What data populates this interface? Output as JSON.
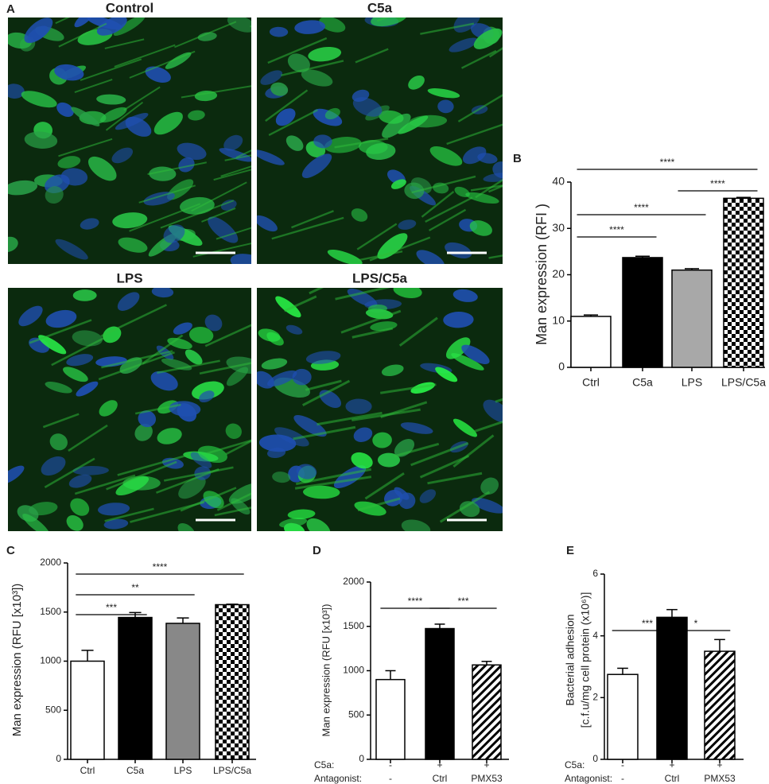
{
  "figure_a": {
    "panel_label": "A",
    "images": [
      {
        "label": "Control"
      },
      {
        "label": "C5a"
      },
      {
        "label": "LPS"
      },
      {
        "label": "LPS/C5a"
      }
    ]
  },
  "chart_data": [
    {
      "type": "bar",
      "panel_label": "B",
      "ylabel": "Man expression (RFI )",
      "categories": [
        "Ctrl",
        "C5a",
        "LPS",
        "LPS/C5a"
      ],
      "values": [
        11,
        23.7,
        21,
        36.5
      ],
      "errors": [
        0.3,
        0.3,
        0.3,
        0.2
      ],
      "fills": [
        "#ffffff",
        "#000000",
        "#a8a8a8",
        "checker"
      ],
      "ylim": [
        0,
        40
      ],
      "yticks": [
        0,
        10,
        20,
        30,
        40
      ],
      "significance": [
        {
          "from": 0,
          "to": 1,
          "label": "****"
        },
        {
          "from": 0,
          "to": 2,
          "label": "****"
        },
        {
          "from": 2,
          "to": 3,
          "label": "****"
        },
        {
          "from": 0,
          "to": 3,
          "label": "****"
        }
      ]
    },
    {
      "type": "bar",
      "panel_label": "C",
      "ylabel": "Man expression (RFU [x10³])",
      "categories": [
        "Ctrl",
        "C5a",
        "LPS",
        "LPS/C5a"
      ],
      "values": [
        1000,
        1445,
        1385,
        1575
      ],
      "errors": [
        110,
        50,
        55,
        5
      ],
      "fills": [
        "#ffffff",
        "#000000",
        "#888888",
        "checker"
      ],
      "ylim": [
        0,
        2000
      ],
      "yticks": [
        0,
        500,
        1000,
        1500,
        2000
      ],
      "significance": [
        {
          "from": 0,
          "to": 1,
          "label": "***"
        },
        {
          "from": 0,
          "to": 2,
          "label": "**"
        },
        {
          "from": 0,
          "to": 3,
          "label": "****"
        }
      ]
    },
    {
      "type": "bar",
      "panel_label": "D",
      "ylabel": "Man expression (RFU [x10³])",
      "category_rows": [
        {
          "name": "C5a:",
          "labels": [
            "-",
            "+",
            "+"
          ]
        },
        {
          "name": "Antagonist:",
          "labels": [
            "-",
            "Ctrl",
            "PMX53"
          ]
        }
      ],
      "values": [
        900,
        1475,
        1065
      ],
      "errors": [
        100,
        50,
        40
      ],
      "fills": [
        "#ffffff",
        "#000000",
        "hatch"
      ],
      "ylim": [
        0,
        2000
      ],
      "yticks": [
        0,
        500,
        1000,
        1500,
        2000
      ],
      "significance": [
        {
          "from": 0,
          "to": 1,
          "label": "****"
        },
        {
          "from": 1,
          "to": 2,
          "label": "***"
        }
      ]
    },
    {
      "type": "bar",
      "panel_label": "E",
      "ylabel": [
        "Bacterial adhesion",
        "[c.f.u/mg cell protein (x10⁶)]"
      ],
      "category_rows": [
        {
          "name": "C5a:",
          "labels": [
            "-",
            "+",
            "+"
          ]
        },
        {
          "name": "Antagonist:",
          "labels": [
            "-",
            "Ctrl",
            "PMX53"
          ]
        }
      ],
      "values": [
        2.75,
        4.6,
        3.5
      ],
      "errors": [
        0.2,
        0.25,
        0.38
      ],
      "fills": [
        "#ffffff",
        "#000000",
        "hatch"
      ],
      "ylim": [
        0,
        6
      ],
      "yticks": [
        0,
        2,
        4,
        6
      ],
      "significance": [
        {
          "from": 0,
          "to": 1,
          "label": "***"
        },
        {
          "from": 1,
          "to": 2,
          "label": "*"
        }
      ]
    }
  ]
}
